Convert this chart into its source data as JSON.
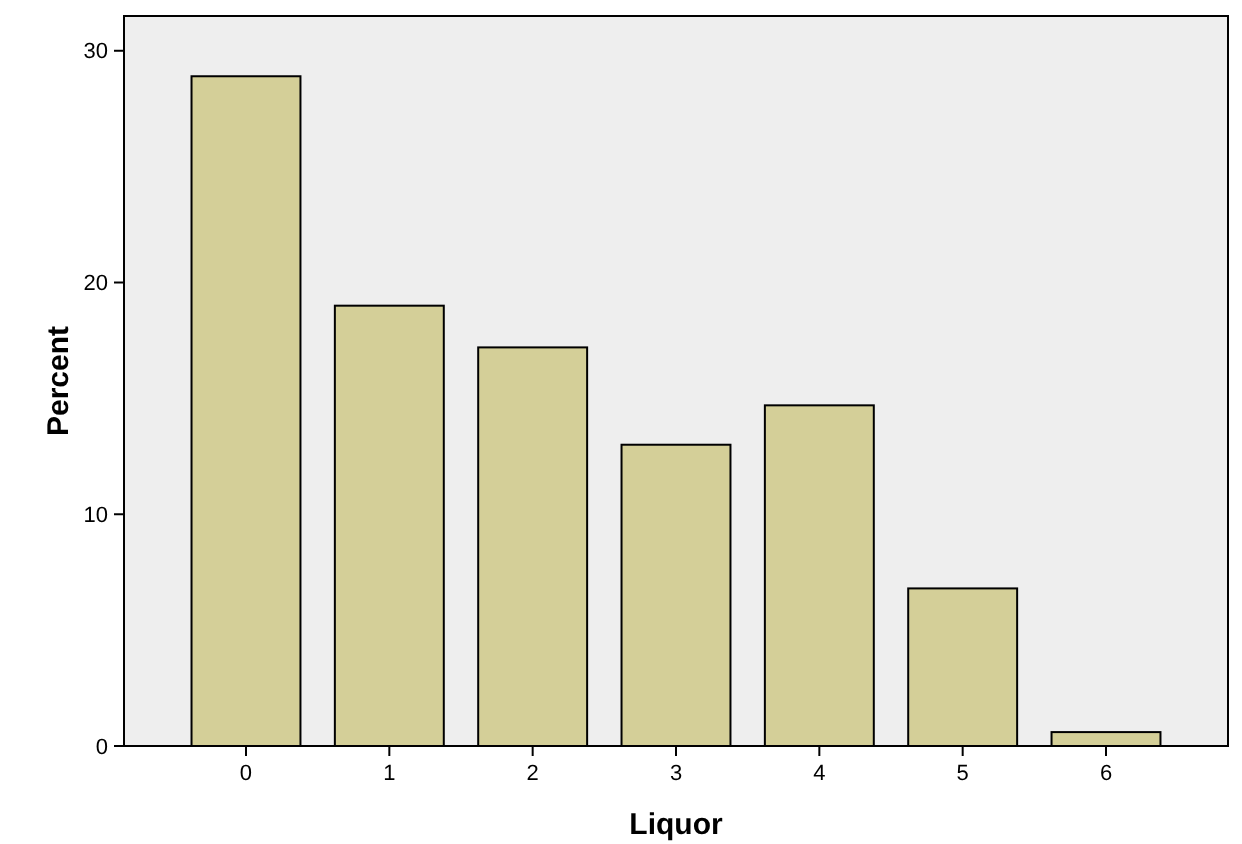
{
  "chart_data": {
    "type": "bar",
    "xlabel": "Liquor",
    "ylabel": "Percent",
    "categories": [
      "0",
      "1",
      "2",
      "3",
      "4",
      "5",
      "6"
    ],
    "values": [
      28.9,
      19.0,
      17.2,
      13.0,
      14.7,
      6.8,
      0.6
    ],
    "color": "#d4cf98",
    "ylim": [
      0,
      31.5
    ],
    "yticks": [
      0,
      10,
      20,
      30
    ],
    "grid": false
  }
}
